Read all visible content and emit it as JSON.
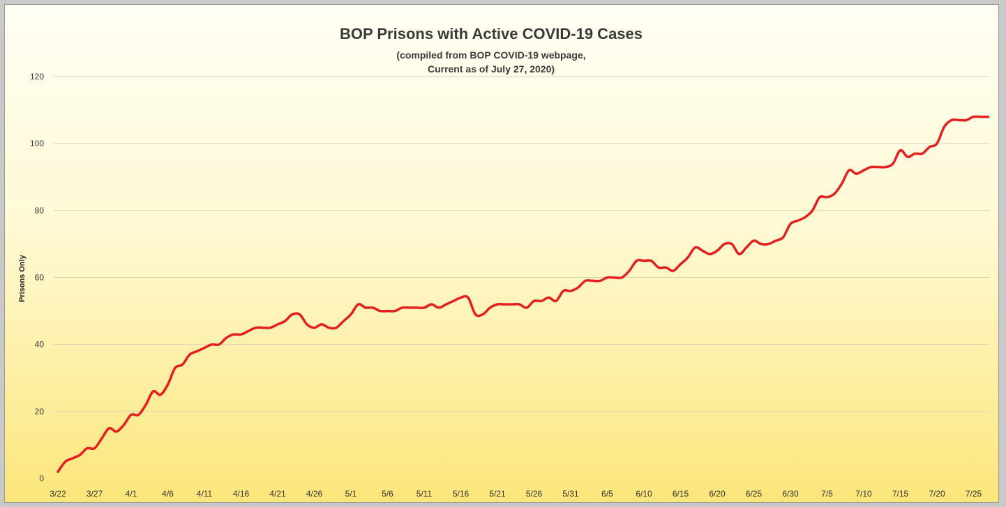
{
  "chart_data": {
    "type": "line",
    "title": "BOP Prisons with Active COVID-19 Cases",
    "subtitle_lines": [
      "(compiled from BOP COVID-19 webpage,",
      "Current as of July 27, 2020)"
    ],
    "xlabel": "",
    "ylabel": "Prisons Only",
    "ylim": [
      0,
      120
    ],
    "yticks": [
      0,
      20,
      40,
      60,
      80,
      100,
      120
    ],
    "grid": true,
    "legend": "none",
    "colors": {
      "line": "#e41f1f",
      "background_top": "#fffef4",
      "background_bottom": "#fbe67a",
      "grid": "#d9d5b8"
    },
    "x_tick_labels": [
      "3/22",
      "3/27",
      "4/1",
      "4/6",
      "4/11",
      "4/16",
      "4/21",
      "4/26",
      "5/1",
      "5/6",
      "5/11",
      "5/16",
      "5/21",
      "5/26",
      "5/31",
      "6/5",
      "6/10",
      "6/15",
      "6/20",
      "6/25",
      "6/30",
      "7/5",
      "7/10",
      "7/15",
      "7/20",
      "7/25"
    ],
    "x_tick_interval_days": 5,
    "series": [
      {
        "x_start": "3/22",
        "step_days": 1,
        "values": [
          2,
          5,
          6,
          7,
          9,
          9,
          12,
          15,
          14,
          16,
          19,
          19,
          22,
          26,
          25,
          28,
          33,
          34,
          37,
          38,
          39,
          40,
          40,
          42,
          43,
          43,
          44,
          45,
          45,
          45,
          46,
          47,
          49,
          49,
          46,
          45,
          46,
          45,
          45,
          47,
          49,
          52,
          51,
          51,
          50,
          50,
          50,
          51,
          51,
          51,
          51,
          52,
          51,
          52,
          53,
          54,
          54,
          49,
          49,
          51,
          52,
          52,
          52,
          52,
          51,
          53,
          53,
          54,
          53,
          56,
          56,
          57,
          59,
          59,
          59,
          60,
          60,
          60,
          62,
          65,
          65,
          65,
          63,
          63,
          62,
          64,
          66,
          69,
          68,
          67,
          68,
          70,
          70,
          67,
          69,
          71,
          70,
          70,
          71,
          72,
          76,
          77,
          78,
          80,
          84,
          84,
          85,
          88,
          92,
          91,
          92,
          93,
          93,
          93,
          94,
          98,
          96,
          97,
          97,
          99,
          100,
          105,
          107,
          107,
          107,
          108,
          108,
          108
        ]
      }
    ]
  }
}
